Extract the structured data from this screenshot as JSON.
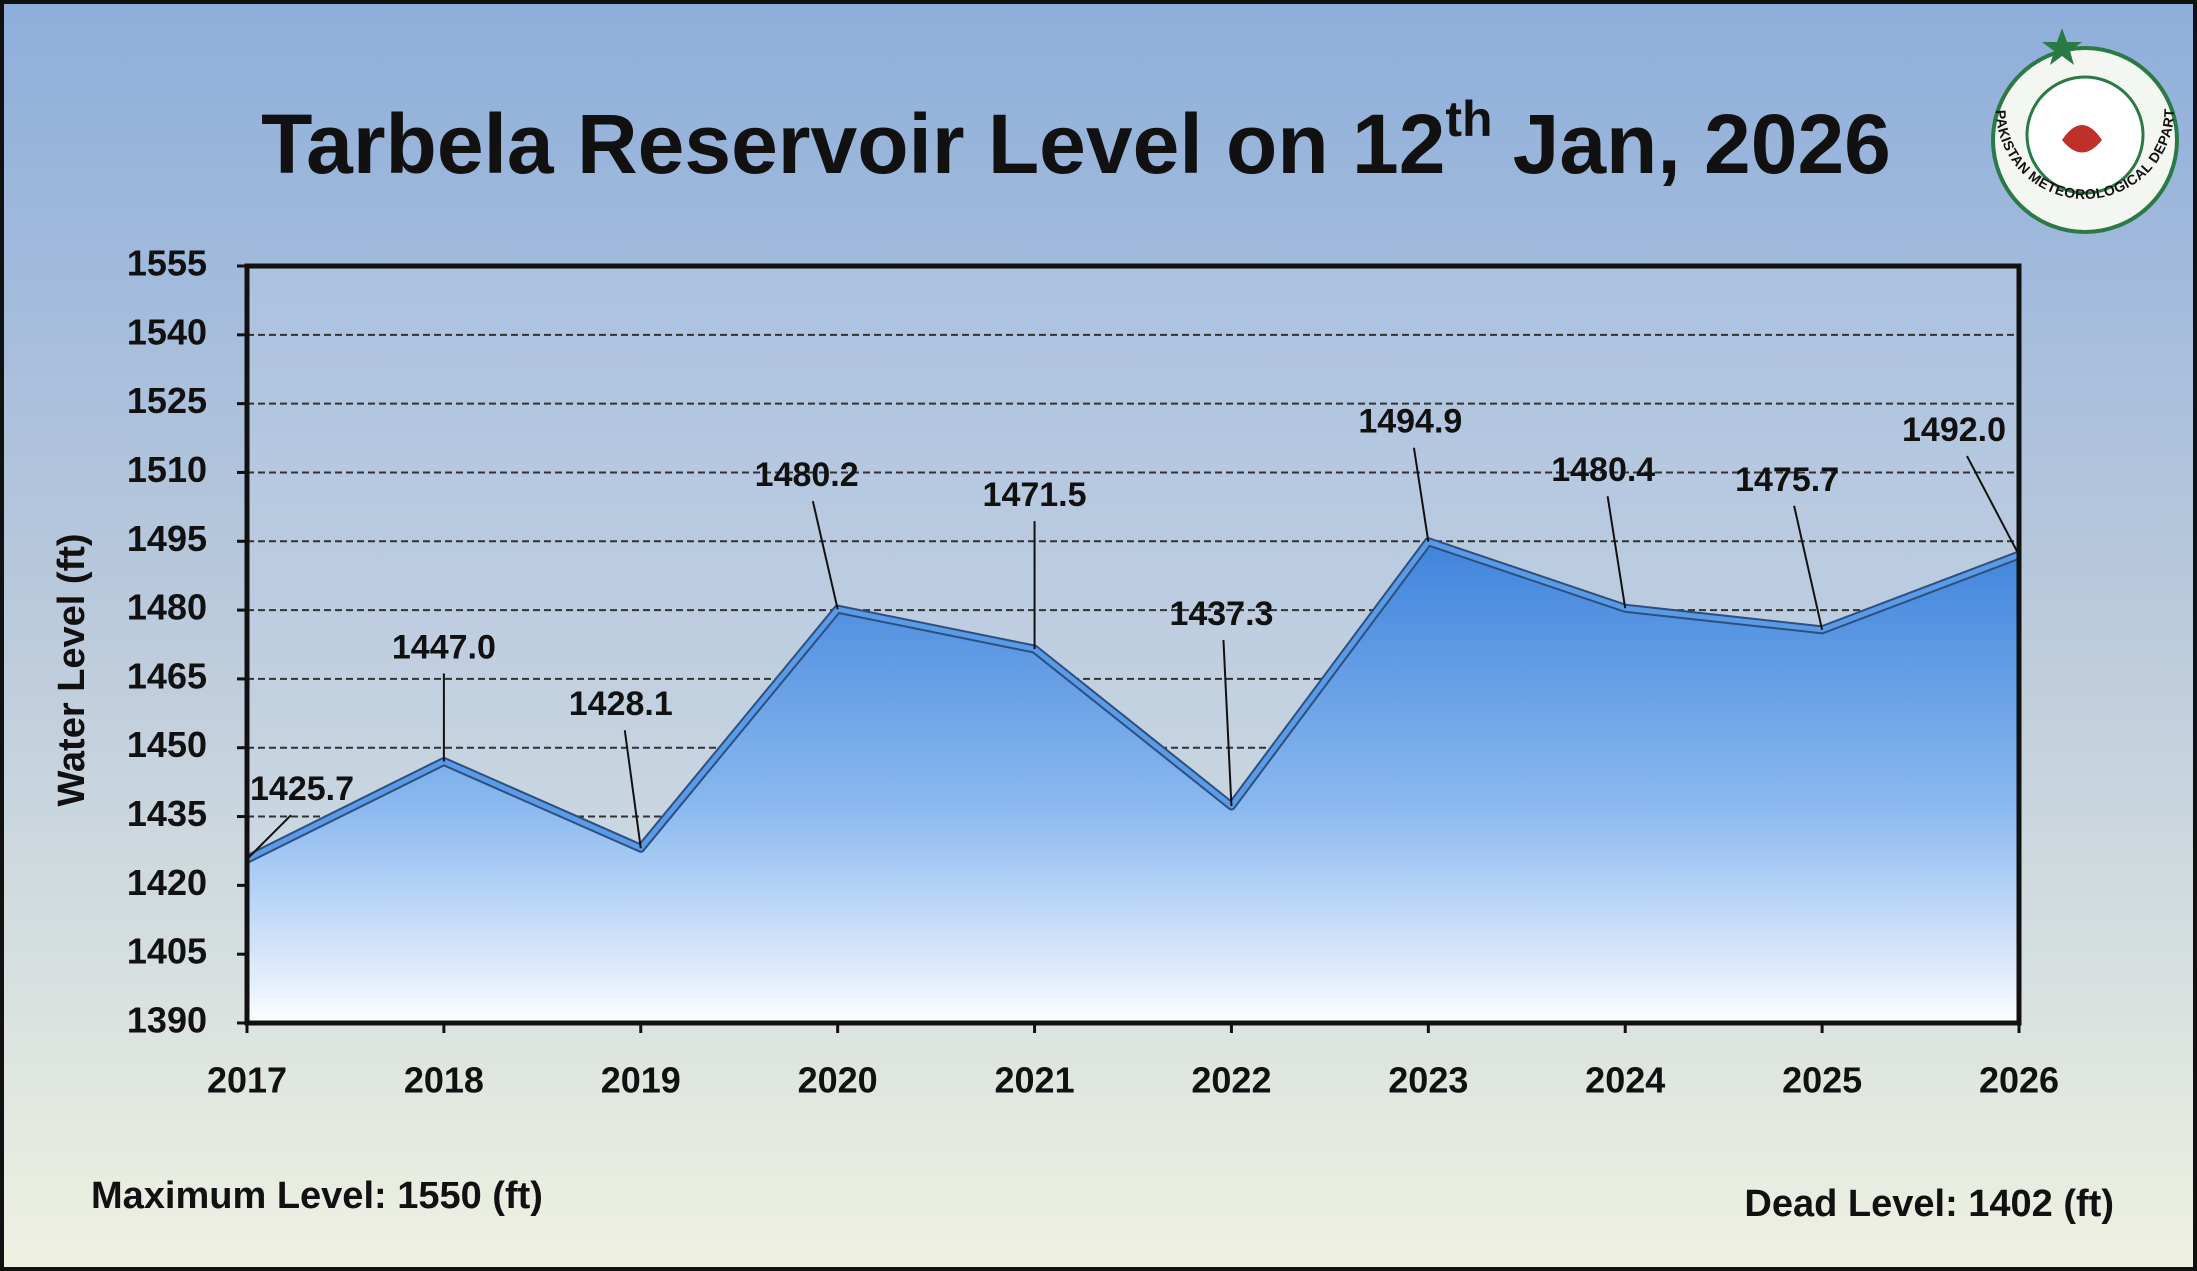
{
  "chart_data": {
    "type": "area",
    "title": [
      "Tarbela Reservoir Level on 12",
      "th",
      "Jan, 2026"
    ],
    "y_label": "Water Level (ft)",
    "categories": [
      "2017",
      "2018",
      "2019",
      "2020",
      "2021",
      "2022",
      "2023",
      "2024",
      "2025",
      "2026"
    ],
    "values": [
      1425.7,
      1447.0,
      1428.1,
      1480.2,
      1471.5,
      1437.3,
      1494.9,
      1480.4,
      1475.7,
      1492.0
    ],
    "value_labels": [
      "1425.7",
      "1447.0",
      "1428.1",
      "1480.2",
      "1471.5",
      "1437.3",
      "1494.9",
      "1480.4",
      "1475.7",
      "1492.0"
    ],
    "color": "#5b9be6",
    "ylim": [
      1390,
      1555
    ],
    "yticks": [
      1390,
      1405,
      1420,
      1435,
      1450,
      1465,
      1480,
      1495,
      1510,
      1525,
      1540,
      1555
    ],
    "grid": true,
    "annotations": [
      "Maximum Level: 1550 (ft)",
      "Dead Level: 1402 (ft)"
    ],
    "logo_text": "PAKISTAN METEOROLOGICAL DEPARTMENT"
  }
}
